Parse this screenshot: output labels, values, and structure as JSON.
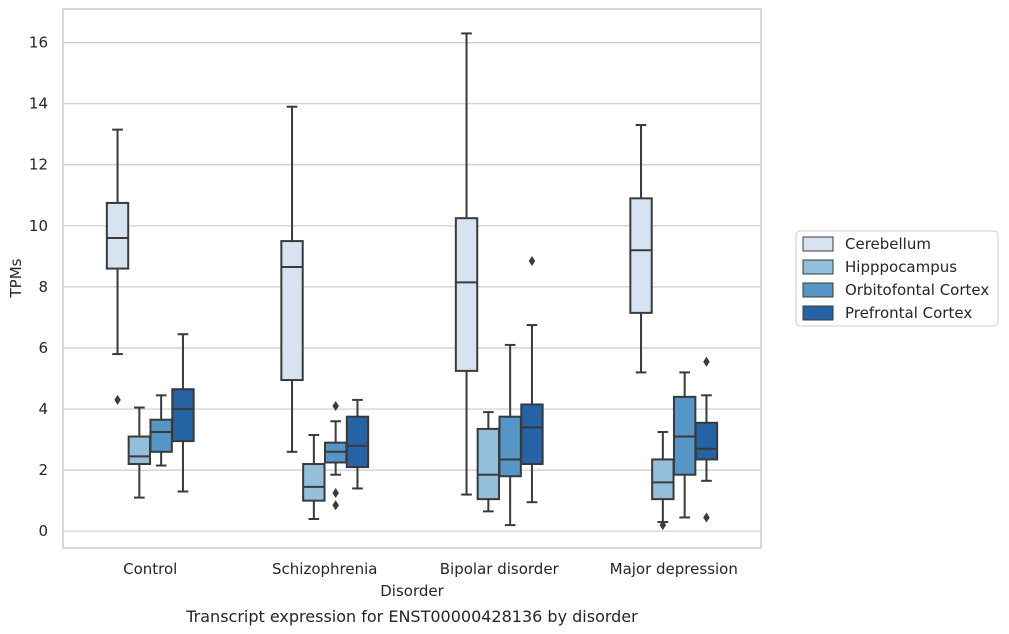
{
  "chart_data": {
    "type": "box",
    "caption": "Transcript expression for ENST00000428136 by disorder",
    "xlabel": "Disorder",
    "ylabel": "TPMs",
    "ylim": [
      -0.55,
      17.1
    ],
    "yticks": [
      0,
      2,
      4,
      6,
      8,
      10,
      12,
      14,
      16
    ],
    "grid": "horizontal",
    "legend_position": "right",
    "categories": [
      "Control",
      "Schizophrenia",
      "Bipolar disorder",
      "Major depression"
    ],
    "series": [
      {
        "name": "Cerebellum",
        "color": "#d6e3f1",
        "boxes": [
          {
            "whislo": 5.8,
            "q1": 8.6,
            "med": 9.6,
            "q3": 10.75,
            "whishi": 13.15,
            "fliers": [
              4.3
            ]
          },
          {
            "whislo": 2.6,
            "q1": 4.95,
            "med": 8.65,
            "q3": 9.5,
            "whishi": 13.9,
            "fliers": []
          },
          {
            "whislo": 1.2,
            "q1": 5.25,
            "med": 8.15,
            "q3": 10.25,
            "whishi": 16.3,
            "fliers": []
          },
          {
            "whislo": 5.2,
            "q1": 7.15,
            "med": 9.2,
            "q3": 10.9,
            "whishi": 13.3,
            "fliers": []
          }
        ]
      },
      {
        "name": "Hipppocampus",
        "color": "#93bfdb",
        "boxes": [
          {
            "whislo": 1.1,
            "q1": 2.2,
            "med": 2.45,
            "q3": 3.1,
            "whishi": 4.05,
            "fliers": []
          },
          {
            "whislo": 0.4,
            "q1": 1.0,
            "med": 1.45,
            "q3": 2.2,
            "whishi": 3.15,
            "fliers": []
          },
          {
            "whislo": 0.65,
            "q1": 1.05,
            "med": 1.85,
            "q3": 3.35,
            "whishi": 3.9,
            "fliers": []
          },
          {
            "whislo": 0.3,
            "q1": 1.05,
            "med": 1.6,
            "q3": 2.35,
            "whishi": 3.25,
            "fliers": [
              0.2
            ]
          }
        ]
      },
      {
        "name": "Orbitofontal Cortex",
        "color": "#5596c6",
        "boxes": [
          {
            "whislo": 2.15,
            "q1": 2.6,
            "med": 3.25,
            "q3": 3.65,
            "whishi": 4.45,
            "fliers": []
          },
          {
            "whislo": 1.85,
            "q1": 2.25,
            "med": 2.6,
            "q3": 2.9,
            "whishi": 3.6,
            "fliers": [
              4.1,
              1.25,
              0.85
            ]
          },
          {
            "whislo": 0.2,
            "q1": 1.8,
            "med": 2.35,
            "q3": 3.75,
            "whishi": 6.1,
            "fliers": []
          },
          {
            "whislo": 0.45,
            "q1": 1.85,
            "med": 3.1,
            "q3": 4.4,
            "whishi": 5.2,
            "fliers": []
          }
        ]
      },
      {
        "name": "Prefrontal Cortex",
        "color": "#2563a4",
        "boxes": [
          {
            "whislo": 1.3,
            "q1": 2.95,
            "med": 4.0,
            "q3": 4.65,
            "whishi": 6.45,
            "fliers": []
          },
          {
            "whislo": 1.4,
            "q1": 2.1,
            "med": 2.8,
            "q3": 3.75,
            "whishi": 4.3,
            "fliers": []
          },
          {
            "whislo": 0.95,
            "q1": 2.2,
            "med": 3.4,
            "q3": 4.15,
            "whishi": 6.75,
            "fliers": [
              8.85
            ]
          },
          {
            "whislo": 1.65,
            "q1": 2.35,
            "med": 2.7,
            "q3": 3.55,
            "whishi": 4.45,
            "fliers": [
              5.55,
              0.45
            ]
          }
        ]
      }
    ]
  }
}
